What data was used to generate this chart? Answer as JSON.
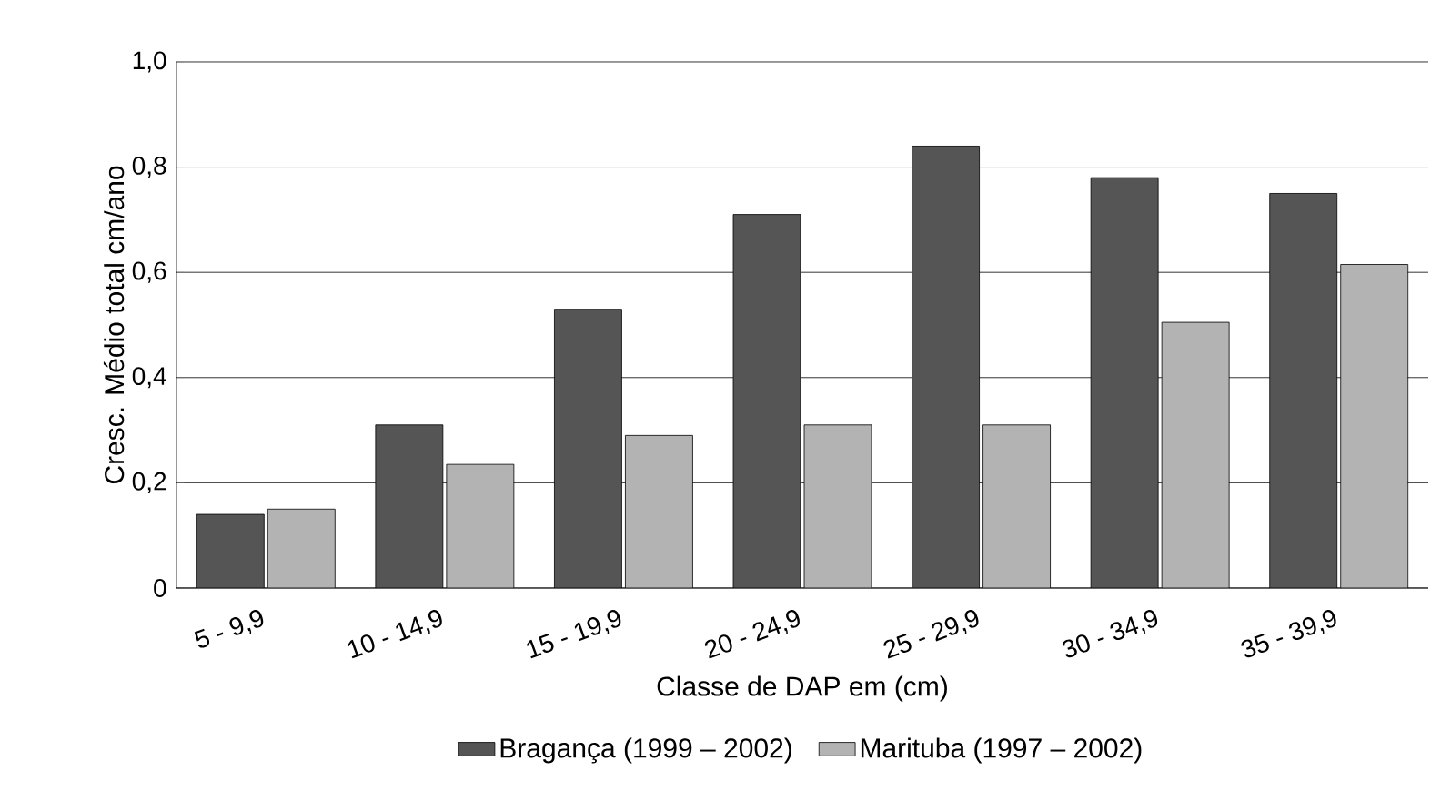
{
  "chart_data": {
    "type": "bar",
    "xlabel": "Classe de DAP em (cm)",
    "ylabel": "Cresc. Médio total cm/ano",
    "categories": [
      "5 - 9,9",
      "10 - 14,9",
      "15 - 19,9",
      "20 - 24,9",
      "25 - 29,9",
      "30 - 34,9",
      "35 - 39,9"
    ],
    "series": [
      {
        "name": "Bragança (1999 – 2002)",
        "color": "#555555",
        "values": [
          0.14,
          0.31,
          0.53,
          0.71,
          0.84,
          0.78,
          0.75
        ]
      },
      {
        "name": "Marituba (1997 – 2002)",
        "color": "#b3b3b3",
        "values": [
          0.15,
          0.235,
          0.29,
          0.31,
          0.31,
          0.505,
          0.615
        ]
      }
    ],
    "ylim": [
      0,
      1
    ],
    "yticks": [
      0,
      {
        "value": 0.2,
        "label": "0,2"
      },
      {
        "value": 0.4,
        "label": "0,4"
      },
      {
        "value": 0.6,
        "label": "0,6"
      },
      {
        "value": 0.8,
        "label": "0,8"
      },
      {
        "value": 1,
        "label": "1,0"
      }
    ],
    "grid": "y",
    "legend": "bottom"
  }
}
